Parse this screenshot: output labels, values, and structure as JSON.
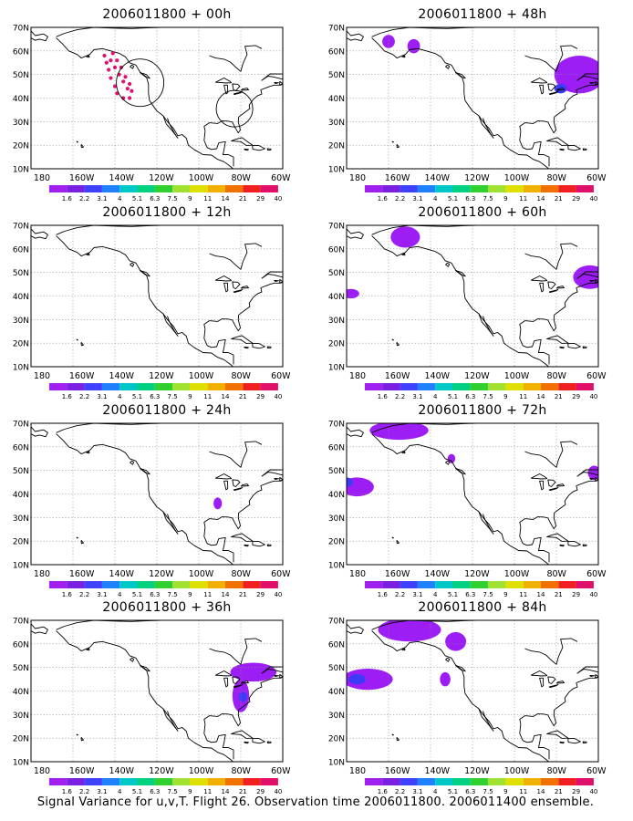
{
  "panels": [
    {
      "title": "2006011800 + 00h"
    },
    {
      "title": "2006011800 + 48h"
    },
    {
      "title": "2006011800 + 12h"
    },
    {
      "title": "2006011800 + 60h"
    },
    {
      "title": "2006011800 + 24h"
    },
    {
      "title": "2006011800 + 72h"
    },
    {
      "title": "2006011800 + 36h"
    },
    {
      "title": "2006011800 + 84h"
    }
  ],
  "axes": {
    "lat_labels": [
      "70N",
      "60N",
      "50N",
      "40N",
      "30N",
      "20N",
      "10N"
    ],
    "lon_labels": [
      "180",
      "160W",
      "140W",
      "120W",
      "100W",
      "80W",
      "60W"
    ]
  },
  "colorbar": {
    "labels": [
      "1.6",
      "2.2",
      "3.1",
      "4",
      "5.1",
      "6.3",
      "7.5",
      "9",
      "11",
      "14",
      "21",
      "29",
      "40"
    ],
    "colors": [
      "#a020f0",
      "#7a20e0",
      "#4040ff",
      "#2080ff",
      "#00c8c8",
      "#00d080",
      "#30d030",
      "#a0e030",
      "#e0e000",
      "#f0b000",
      "#f07000",
      "#f02020",
      "#e0106a"
    ]
  },
  "footer": "Signal Variance for u,v,T. Flight 26. Observation time 2006011800. 2006011400 ensemble."
}
